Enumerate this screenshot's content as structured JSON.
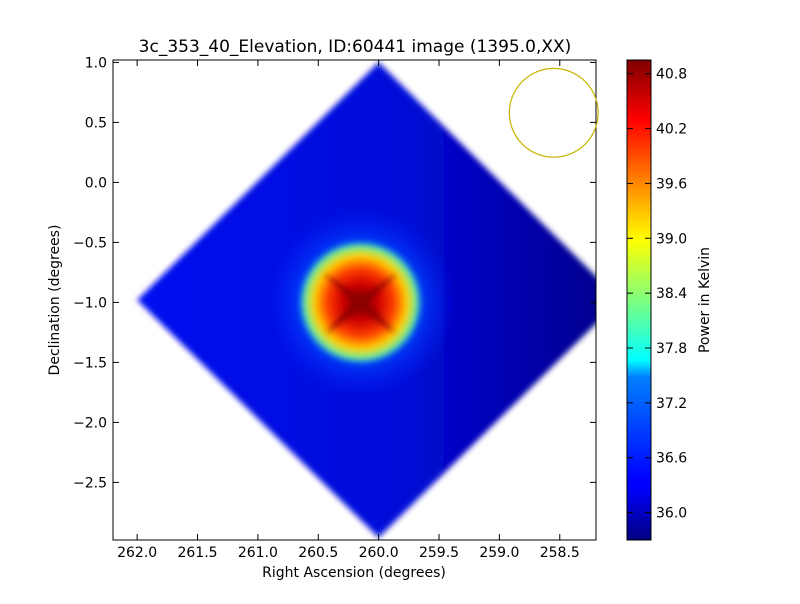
{
  "chart_data": {
    "type": "heatmap",
    "title": "3c_353_40_Elevation, ID:60441 image (1395.0,XX)",
    "xlabel": "Right Ascension (degrees)",
    "ylabel": "Declination (degrees)",
    "xlim": [
      262.2,
      258.2
    ],
    "ylim": [
      -2.98,
      1.02
    ],
    "x_ticks": [
      262.0,
      261.5,
      261.0,
      260.5,
      260.0,
      259.5,
      259.0,
      258.5
    ],
    "x_tick_labels": [
      "262.0",
      "261.5",
      "261.0",
      "260.5",
      "260.0",
      "259.5",
      "259.0",
      "258.5"
    ],
    "y_ticks": [
      1.0,
      0.5,
      0.0,
      -0.5,
      -1.0,
      -1.5,
      -2.0,
      -2.5
    ],
    "y_tick_labels": [
      "1.0",
      "0.5",
      "0.0",
      "−0.5",
      "−1.0",
      "−1.5",
      "−2.0",
      "−2.5"
    ],
    "colorbar": {
      "label": "Power in Kelvin",
      "vmin": 35.7,
      "vmax": 40.95,
      "ticks": [
        36.0,
        36.6,
        37.2,
        37.8,
        38.4,
        39.0,
        39.6,
        40.2,
        40.8
      ],
      "tick_labels": [
        "36.0",
        "36.6",
        "37.2",
        "37.8",
        "38.4",
        "39.0",
        "39.6",
        "40.2",
        "40.8"
      ],
      "colormap": "jet"
    },
    "map": {
      "shape": "diamond",
      "center": {
        "ra": 260.0,
        "dec": -0.98
      },
      "half_width_ra": 2.0,
      "half_height_dec": 1.98,
      "background_level": 35.95,
      "source": {
        "ra": 260.15,
        "dec": -1.0,
        "peak": 40.9
      }
    },
    "beam": {
      "ra": 258.55,
      "dec": 0.58,
      "radius_dec": 0.37,
      "color": "#c8b400"
    }
  }
}
